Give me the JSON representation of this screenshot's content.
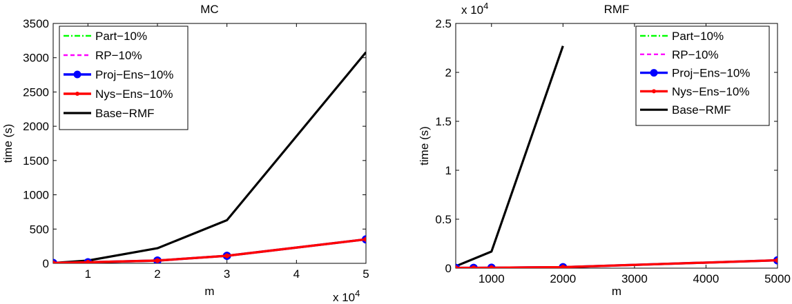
{
  "chart_data": [
    {
      "type": "line",
      "title": "MC",
      "xlabel": "m",
      "ylabel": "time (s)",
      "x_exponent_label": {
        "prefix": "x 10",
        "exp": "4"
      },
      "xlim": [
        0.5,
        5
      ],
      "ylim": [
        0,
        3500
      ],
      "xticks": [
        1,
        2,
        3,
        4,
        5
      ],
      "xtick_labels": [
        "1",
        "2",
        "3",
        "4",
        "5"
      ],
      "yticks": [
        0,
        500,
        1000,
        1500,
        2000,
        2500,
        3000,
        3500
      ],
      "ytick_labels": [
        "0",
        "500",
        "1000",
        "1500",
        "2000",
        "2500",
        "3000",
        "3500"
      ],
      "grid": false,
      "legend_position": "top-left",
      "series": [
        {
          "name": "Part−10%",
          "color": "#00ff00",
          "style": "dashdot",
          "marker": "none",
          "x": [
            0.5,
            1,
            2,
            3,
            5
          ],
          "y": [
            5,
            15,
            40,
            110,
            350
          ]
        },
        {
          "name": "RP−10%",
          "color": "#ff00ff",
          "style": "dashed",
          "marker": "none",
          "x": [
            0.5,
            1,
            2,
            3,
            5
          ],
          "y": [
            5,
            15,
            40,
            110,
            350
          ]
        },
        {
          "name": "Proj−Ens−10%",
          "color": "#0000ff",
          "style": "solid",
          "marker": "circle",
          "x": [
            0.5,
            1,
            2,
            3,
            5
          ],
          "y": [
            5,
            15,
            40,
            110,
            350
          ]
        },
        {
          "name": "Nys−Ens−10%",
          "color": "#ff0000",
          "style": "solid",
          "marker": "dot",
          "x": [
            0.5,
            1,
            2,
            3,
            5
          ],
          "y": [
            5,
            15,
            40,
            110,
            350
          ]
        },
        {
          "name": "Base−RMF",
          "color": "#000000",
          "style": "solid",
          "marker": "none",
          "x": [
            0.5,
            1,
            2,
            3,
            5
          ],
          "y": [
            5,
            40,
            220,
            630,
            3080
          ]
        }
      ]
    },
    {
      "type": "line",
      "title": "RMF",
      "xlabel": "m",
      "ylabel": "time (s)",
      "y_exponent_label": {
        "prefix": "x 10",
        "exp": "4"
      },
      "xlim": [
        500,
        5000
      ],
      "ylim": [
        0,
        2.5
      ],
      "xticks": [
        1000,
        2000,
        3000,
        4000,
        5000
      ],
      "xtick_labels": [
        "1000",
        "2000",
        "3000",
        "4000",
        "5000"
      ],
      "yticks": [
        0,
        0.5,
        1,
        1.5,
        2,
        2.5
      ],
      "ytick_labels": [
        "0",
        "0.5",
        "1",
        "1.5",
        "2",
        "2.5"
      ],
      "grid": false,
      "legend_position": "top-right",
      "series": [
        {
          "name": "Part−10%",
          "color": "#00ff00",
          "style": "dashdot",
          "marker": "none",
          "x": [
            500,
            750,
            1000,
            2000,
            5000
          ],
          "y": [
            0.003,
            0.003,
            0.004,
            0.01,
            0.08
          ]
        },
        {
          "name": "RP−10%",
          "color": "#ff00ff",
          "style": "dashed",
          "marker": "none",
          "x": [
            500,
            750,
            1000,
            2000,
            5000
          ],
          "y": [
            0.003,
            0.003,
            0.004,
            0.01,
            0.08
          ]
        },
        {
          "name": "Proj−Ens−10%",
          "color": "#0000ff",
          "style": "solid",
          "marker": "circle",
          "x": [
            500,
            750,
            1000,
            2000,
            5000
          ],
          "y": [
            0.003,
            0.003,
            0.004,
            0.01,
            0.08
          ]
        },
        {
          "name": "Nys−Ens−10%",
          "color": "#ff0000",
          "style": "solid",
          "marker": "dot",
          "x": [
            500,
            750,
            1000,
            2000,
            5000
          ],
          "y": [
            0.003,
            0.003,
            0.004,
            0.01,
            0.08
          ]
        },
        {
          "name": "Base−RMF",
          "color": "#000000",
          "style": "solid",
          "marker": "none",
          "x": [
            500,
            1000,
            2000
          ],
          "y": [
            0.02,
            0.17,
            2.27
          ]
        }
      ]
    }
  ]
}
